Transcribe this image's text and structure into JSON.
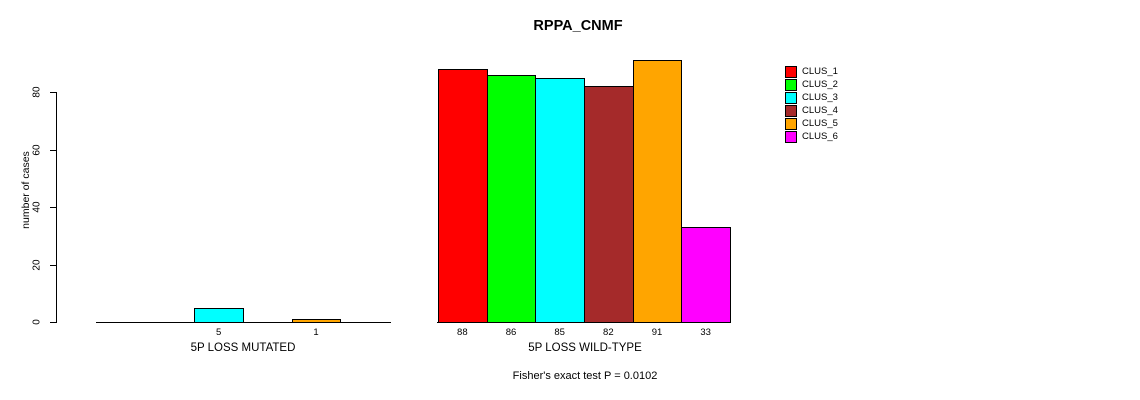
{
  "chart_data": {
    "type": "bar",
    "title": "RPPA_CNMF",
    "ylabel": "number of cases",
    "yticks": [
      0,
      20,
      40,
      60,
      80
    ],
    "ylim": [
      0,
      80
    ],
    "grid": false,
    "legend_position": "right",
    "clusters": [
      {
        "name": "CLUS_1",
        "color": "#FF0000"
      },
      {
        "name": "CLUS_2",
        "color": "#00FF00"
      },
      {
        "name": "CLUS_3",
        "color": "#00FFFF"
      },
      {
        "name": "CLUS_4",
        "color": "#A52A2A"
      },
      {
        "name": "CLUS_5",
        "color": "#FFA500"
      },
      {
        "name": "CLUS_6",
        "color": "#FF00FF"
      }
    ],
    "groups": [
      {
        "label": "5P LOSS MUTATED",
        "values": [
          0,
          0,
          5,
          0,
          1,
          0
        ],
        "bar_labels": [
          "",
          "",
          "5",
          "",
          "1",
          ""
        ]
      },
      {
        "label": "5P LOSS WILD-TYPE",
        "values": [
          88,
          86,
          85,
          82,
          91,
          33
        ],
        "bar_labels": [
          "88",
          "86",
          "85",
          "82",
          "91",
          "33"
        ]
      }
    ],
    "annotation": "Fisher's exact test P = 0.0102",
    "axis_color": "#000000",
    "background_color": "#FFFFFF"
  }
}
